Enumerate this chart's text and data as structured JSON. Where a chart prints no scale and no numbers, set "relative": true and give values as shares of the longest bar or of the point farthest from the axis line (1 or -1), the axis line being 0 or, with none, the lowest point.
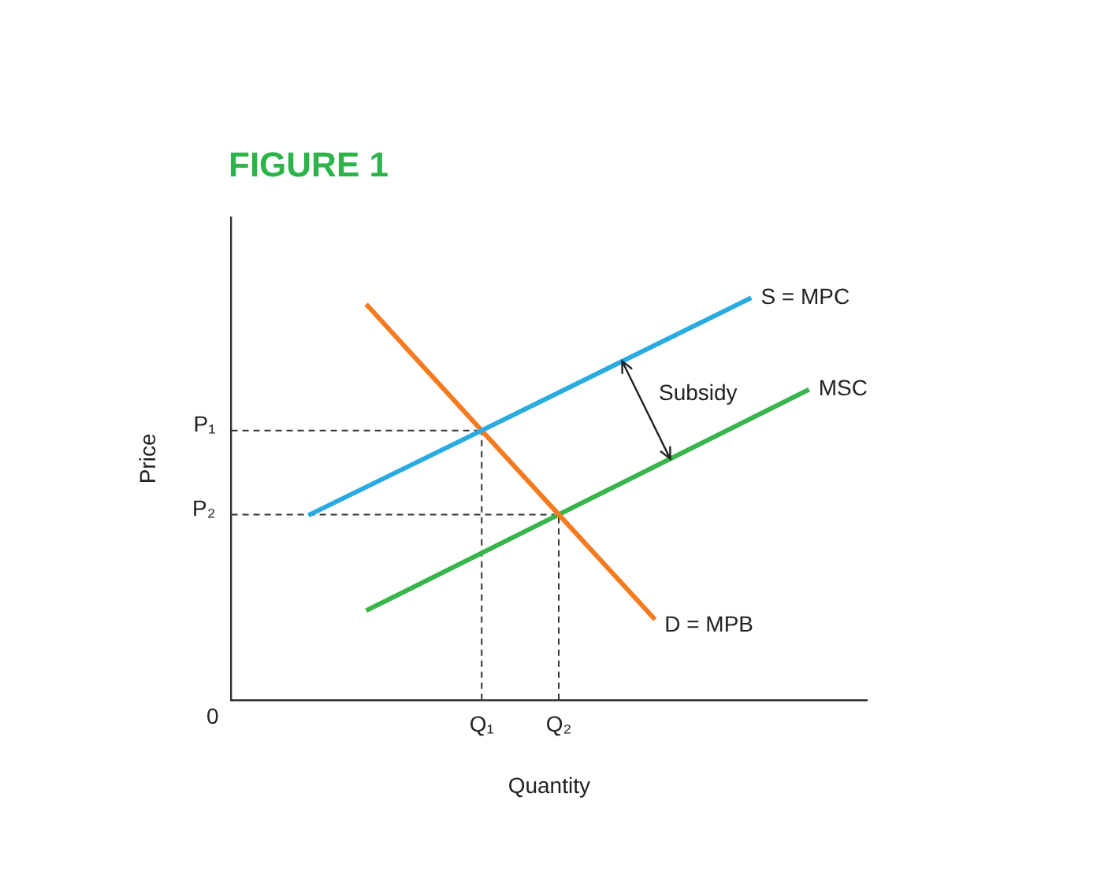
{
  "chart_data": {
    "type": "line",
    "title": "FIGURE 1",
    "xlabel": "Quantity",
    "ylabel": "Price",
    "relative": true,
    "legend": false,
    "marker": "none",
    "line_style": "solid",
    "categories": [
      null,
      null,
      null,
      null,
      null,
      null,
      null,
      null,
      null,
      null,
      null,
      null,
      null,
      "Q₁",
      null,
      null,
      null,
      "Q₂",
      null,
      null,
      null,
      null,
      null,
      null,
      null,
      null,
      null,
      null,
      null,
      null,
      null,
      null,
      null,
      null
    ],
    "series": [
      {
        "name": "S = MPC",
        "color": "#29abe2",
        "values": [
          null,
          null,
          null,
          null,
          0.459,
          null,
          null,
          null,
          null,
          null,
          null,
          null,
          null,
          0.67,
          null,
          null,
          null,
          null,
          null,
          null,
          null,
          null,
          null,
          null,
          null,
          null,
          null,
          1,
          null,
          null,
          null,
          null,
          null,
          null
        ]
      },
      {
        "name": "D = MPB",
        "color": "#f47b20",
        "values": [
          null,
          null,
          null,
          null,
          null,
          null,
          null,
          0.984,
          null,
          null,
          null,
          null,
          null,
          0.67,
          null,
          null,
          null,
          0.461,
          null,
          null,
          null,
          null,
          0.2,
          null,
          null,
          null,
          null,
          null,
          null,
          null,
          null,
          null,
          null,
          null
        ]
      },
      {
        "name": "MSC",
        "color": "#39b54a",
        "values": [
          null,
          null,
          null,
          null,
          null,
          null,
          null,
          0.222,
          null,
          null,
          null,
          null,
          null,
          null,
          null,
          null,
          null,
          0.461,
          null,
          null,
          null,
          null,
          null,
          null,
          null,
          null,
          null,
          null,
          null,
          null,
          0.772,
          null,
          null,
          null
        ]
      }
    ],
    "ref_lines": [
      {
        "axis": "y",
        "value": 0.67,
        "label": "P₁",
        "color": "#333333",
        "line_style": "dashed"
      },
      {
        "axis": "y",
        "value": 0.461,
        "label": "P₂",
        "color": "#333333",
        "line_style": "dashed"
      },
      {
        "axis": "x",
        "value": "Q₁",
        "color": "#333333",
        "line_style": "dashed"
      },
      {
        "axis": "x",
        "value": "Q₂",
        "color": "#333333",
        "line_style": "dashed"
      }
    ],
    "annotations": [
      "Subsidy",
      "0"
    ]
  }
}
